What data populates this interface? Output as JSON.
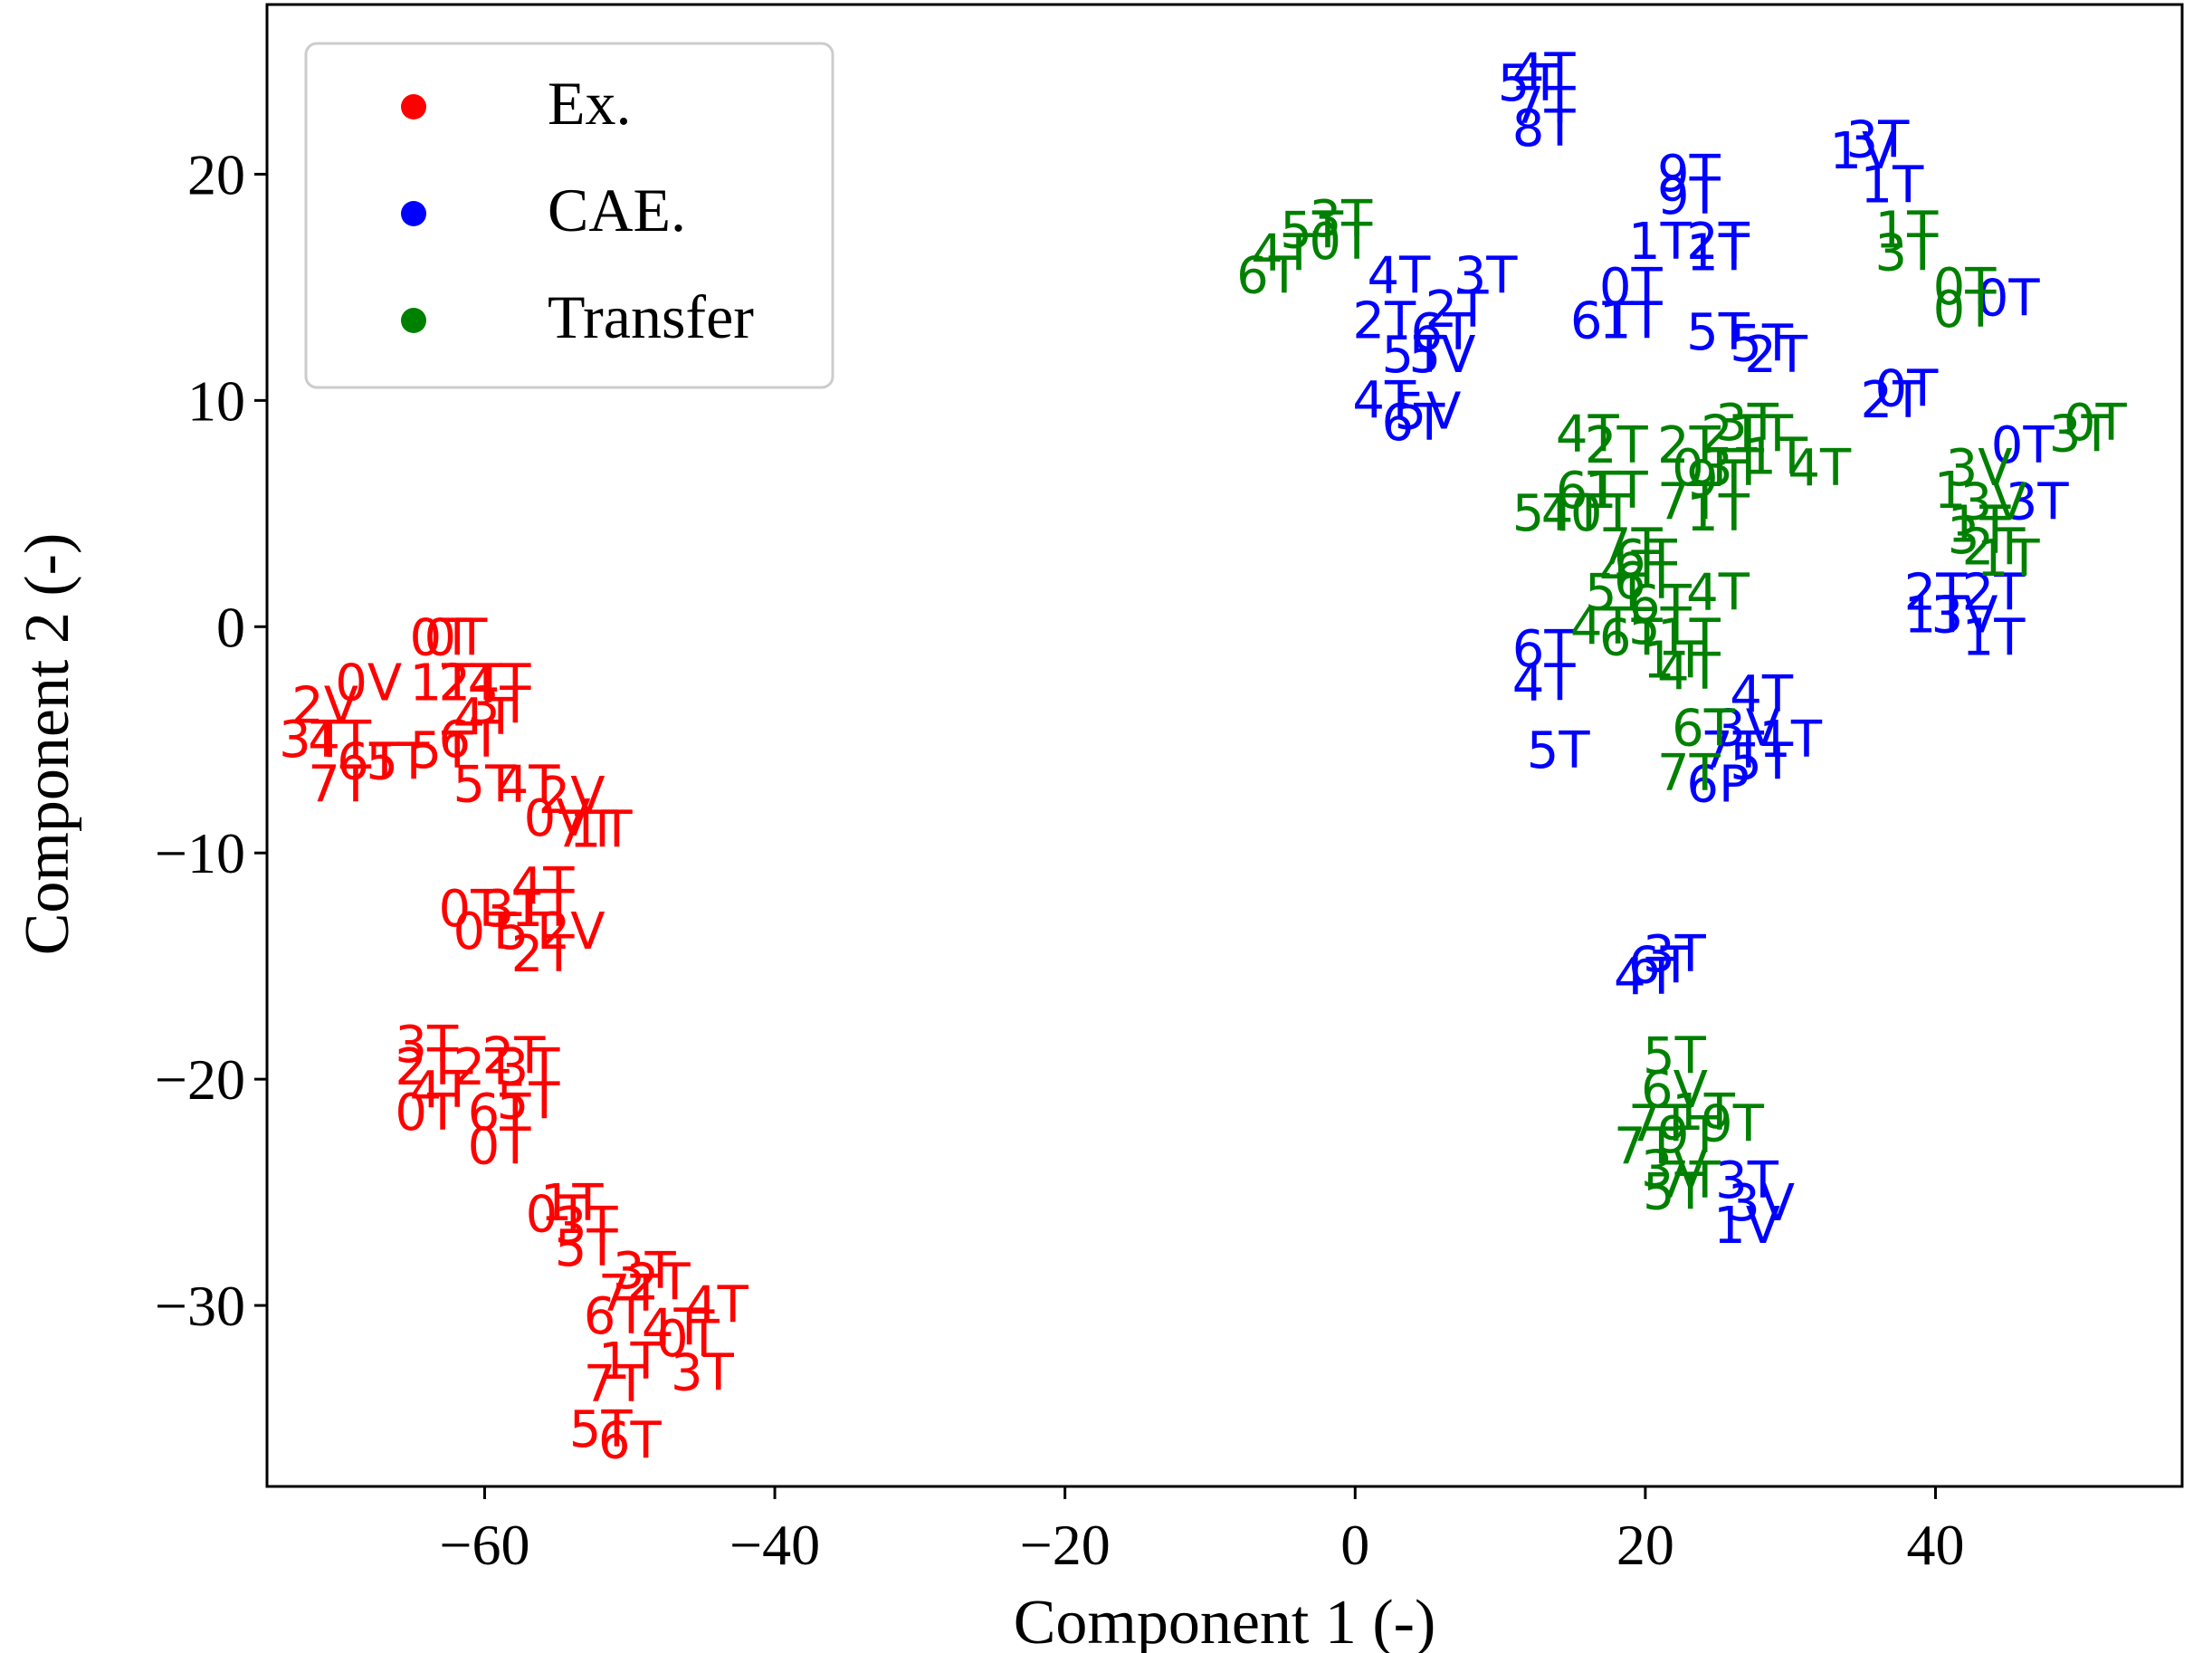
{
  "chart_data": {
    "type": "scatter",
    "title": "",
    "xlabel": "Component 1 (-)",
    "ylabel": "Component 2 (-)",
    "xlim": [
      -75,
      57
    ],
    "ylim": [
      -38,
      27.5
    ],
    "xticks": [
      -60,
      -40,
      -20,
      0,
      20,
      40
    ],
    "yticks": [
      20,
      10,
      0,
      -10,
      -20,
      -30
    ],
    "xtick_labels": [
      "−60",
      "−40",
      "−20",
      "0",
      "20",
      "40"
    ],
    "ytick_labels": [
      "20",
      "10",
      "0",
      "−10",
      "−20",
      "−30"
    ],
    "grid": false,
    "legend_position": "top-left",
    "series": [
      {
        "name": "Ex.",
        "color": "#ff0000",
        "points": [
          {
            "x": -63,
            "y": -0.5,
            "label": "0T"
          },
          {
            "x": -62,
            "y": -0.5,
            "label": "0T"
          },
          {
            "x": -68,
            "y": -2.5,
            "label": "0V"
          },
          {
            "x": -63,
            "y": -2.5,
            "label": "1T"
          },
          {
            "x": -61,
            "y": -2.5,
            "label": "2T"
          },
          {
            "x": -59,
            "y": -2.5,
            "label": "4T"
          },
          {
            "x": -71,
            "y": -3.5,
            "label": "2V"
          },
          {
            "x": -59,
            "y": -3.5,
            "label": "3T"
          },
          {
            "x": -60,
            "y": -4.0,
            "label": "4T"
          },
          {
            "x": -72,
            "y": -5.0,
            "label": "3T"
          },
          {
            "x": -70,
            "y": -5.0,
            "label": "4T"
          },
          {
            "x": -61,
            "y": -5.0,
            "label": "6T"
          },
          {
            "x": -63,
            "y": -5.5,
            "label": "5T"
          },
          {
            "x": -68,
            "y": -6.0,
            "label": "6T"
          },
          {
            "x": -66,
            "y": -6.0,
            "label": "5T"
          },
          {
            "x": -70,
            "y": -7.0,
            "label": "7T"
          },
          {
            "x": -60,
            "y": -7.0,
            "label": "5T"
          },
          {
            "x": -57,
            "y": -7.0,
            "label": "4T"
          },
          {
            "x": -54,
            "y": -7.5,
            "label": "2V"
          },
          {
            "x": -55,
            "y": -8.5,
            "label": "0V"
          },
          {
            "x": -53,
            "y": -9.0,
            "label": "7T"
          },
          {
            "x": -52,
            "y": -9.0,
            "label": "1T"
          },
          {
            "x": -56,
            "y": -11.5,
            "label": "4T"
          },
          {
            "x": -61,
            "y": -12.5,
            "label": "0T"
          },
          {
            "x": -58,
            "y": -12.5,
            "label": "3T"
          },
          {
            "x": -56,
            "y": -12.5,
            "label": "1T"
          },
          {
            "x": -60,
            "y": -13.5,
            "label": "0T"
          },
          {
            "x": -57,
            "y": -13.5,
            "label": "5T"
          },
          {
            "x": -54,
            "y": -13.5,
            "label": "2V"
          },
          {
            "x": -56,
            "y": -14.5,
            "label": "2T"
          },
          {
            "x": -64,
            "y": -18.5,
            "label": "3T"
          },
          {
            "x": -58,
            "y": -19.0,
            "label": "2T"
          },
          {
            "x": -64,
            "y": -19.5,
            "label": "2T"
          },
          {
            "x": -60,
            "y": -19.5,
            "label": "2T"
          },
          {
            "x": -57,
            "y": -19.5,
            "label": "3T"
          },
          {
            "x": -63,
            "y": -20.5,
            "label": "4T"
          },
          {
            "x": -64,
            "y": -21.5,
            "label": "0T"
          },
          {
            "x": -59,
            "y": -21.5,
            "label": "6T"
          },
          {
            "x": -57,
            "y": -21.0,
            "label": "5T"
          },
          {
            "x": -59,
            "y": -23.0,
            "label": "0T"
          },
          {
            "x": -54,
            "y": -25.5,
            "label": "1T"
          },
          {
            "x": -55,
            "y": -26.0,
            "label": "0T"
          },
          {
            "x": -53,
            "y": -26.5,
            "label": "3T"
          },
          {
            "x": -53,
            "y": -27.5,
            "label": "5T"
          },
          {
            "x": -49,
            "y": -28.5,
            "label": "3T"
          },
          {
            "x": -48,
            "y": -29.0,
            "label": "2T"
          },
          {
            "x": -50,
            "y": -29.5,
            "label": "7T"
          },
          {
            "x": -44,
            "y": -30.0,
            "label": "4T"
          },
          {
            "x": -51,
            "y": -30.5,
            "label": "6T"
          },
          {
            "x": -47,
            "y": -31.0,
            "label": "4T"
          },
          {
            "x": -46,
            "y": -31.5,
            "label": "0T"
          },
          {
            "x": -50,
            "y": -32.5,
            "label": "1T"
          },
          {
            "x": -45,
            "y": -33.0,
            "label": "3T"
          },
          {
            "x": -51,
            "y": -33.5,
            "label": "7T"
          },
          {
            "x": -52,
            "y": -35.5,
            "label": "5T"
          },
          {
            "x": -50,
            "y": -36.0,
            "label": "6T"
          }
        ]
      },
      {
        "name": "CAE.",
        "color": "#0000ff",
        "points": [
          {
            "x": 13,
            "y": 24.5,
            "label": "4T"
          },
          {
            "x": 12,
            "y": 24.0,
            "label": "5T"
          },
          {
            "x": 13,
            "y": 23.0,
            "label": "7T"
          },
          {
            "x": 13,
            "y": 22.0,
            "label": "8T"
          },
          {
            "x": 36,
            "y": 21.5,
            "label": "3T"
          },
          {
            "x": 35,
            "y": 21.0,
            "label": "1V"
          },
          {
            "x": 37,
            "y": 19.5,
            "label": "1T"
          },
          {
            "x": 23,
            "y": 20.0,
            "label": "9T"
          },
          {
            "x": 23,
            "y": 19.0,
            "label": "9T"
          },
          {
            "x": 21,
            "y": 17.0,
            "label": "1T"
          },
          {
            "x": 25,
            "y": 17.0,
            "label": "2T"
          },
          {
            "x": 25,
            "y": 16.5,
            "label": "1T"
          },
          {
            "x": 3,
            "y": 15.5,
            "label": "4T"
          },
          {
            "x": 9,
            "y": 15.5,
            "label": "3T"
          },
          {
            "x": 19,
            "y": 15.0,
            "label": "0T"
          },
          {
            "x": 7,
            "y": 14.0,
            "label": "2T"
          },
          {
            "x": 2,
            "y": 13.5,
            "label": "2T"
          },
          {
            "x": 17,
            "y": 13.5,
            "label": "6T"
          },
          {
            "x": 19,
            "y": 13.5,
            "label": "1T"
          },
          {
            "x": 6,
            "y": 13.0,
            "label": "6T"
          },
          {
            "x": 4,
            "y": 12.0,
            "label": "5T"
          },
          {
            "x": 6,
            "y": 12.0,
            "label": "5V"
          },
          {
            "x": 25,
            "y": 13.0,
            "label": "5T"
          },
          {
            "x": 28,
            "y": 12.5,
            "label": "5T"
          },
          {
            "x": 29,
            "y": 12.0,
            "label": "2T"
          },
          {
            "x": 45,
            "y": 14.5,
            "label": "0T"
          },
          {
            "x": 38,
            "y": 10.5,
            "label": "0T"
          },
          {
            "x": 37,
            "y": 10.0,
            "label": "2T"
          },
          {
            "x": 2,
            "y": 10.0,
            "label": "4T"
          },
          {
            "x": 4,
            "y": 9.0,
            "label": "6T"
          },
          {
            "x": 5,
            "y": 9.5,
            "label": "5V"
          },
          {
            "x": 46,
            "y": 8.0,
            "label": "0T"
          },
          {
            "x": 47,
            "y": 5.5,
            "label": "3T"
          },
          {
            "x": 40,
            "y": 1.5,
            "label": "2T"
          },
          {
            "x": 44,
            "y": 1.5,
            "label": "2T"
          },
          {
            "x": 40,
            "y": 0.5,
            "label": "1T"
          },
          {
            "x": 42,
            "y": 0.5,
            "label": "3V"
          },
          {
            "x": 44,
            "y": -0.5,
            "label": "1T"
          },
          {
            "x": 13,
            "y": -1.0,
            "label": "6T"
          },
          {
            "x": 13,
            "y": -2.5,
            "label": "4T"
          },
          {
            "x": 28,
            "y": -3.0,
            "label": "4T"
          },
          {
            "x": 27,
            "y": -4.5,
            "label": "3V"
          },
          {
            "x": 30,
            "y": -5.0,
            "label": "1T"
          },
          {
            "x": 14,
            "y": -5.5,
            "label": "5T"
          },
          {
            "x": 26,
            "y": -5.5,
            "label": "7T"
          },
          {
            "x": 28,
            "y": -6.0,
            "label": "5T"
          },
          {
            "x": 25,
            "y": -7.0,
            "label": "6P"
          },
          {
            "x": 22,
            "y": -14.5,
            "label": "3T"
          },
          {
            "x": 21,
            "y": -15.0,
            "label": "6T"
          },
          {
            "x": 20,
            "y": -15.5,
            "label": "4T"
          },
          {
            "x": 27,
            "y": -24.5,
            "label": "3T"
          },
          {
            "x": 28,
            "y": -25.5,
            "label": "3V"
          },
          {
            "x": 27,
            "y": -26.5,
            "label": "1V"
          }
        ]
      },
      {
        "name": "Transfer",
        "color": "#008000",
        "points": [
          {
            "x": -1,
            "y": 18.0,
            "label": "3T"
          },
          {
            "x": -3,
            "y": 17.5,
            "label": "5T"
          },
          {
            "x": -1,
            "y": 17.0,
            "label": "0T"
          },
          {
            "x": -5,
            "y": 16.5,
            "label": "4T"
          },
          {
            "x": -6,
            "y": 15.5,
            "label": "6T"
          },
          {
            "x": 38,
            "y": 17.5,
            "label": "1T"
          },
          {
            "x": 38,
            "y": 16.5,
            "label": "3T"
          },
          {
            "x": 42,
            "y": 15.0,
            "label": "0T"
          },
          {
            "x": 42,
            "y": 14.0,
            "label": "0T"
          },
          {
            "x": 51,
            "y": 9.0,
            "label": "0T"
          },
          {
            "x": 50,
            "y": 8.5,
            "label": "3T"
          },
          {
            "x": 16,
            "y": 8.5,
            "label": "4T"
          },
          {
            "x": 18,
            "y": 8.0,
            "label": "2T"
          },
          {
            "x": 23,
            "y": 8.0,
            "label": "2T"
          },
          {
            "x": 27,
            "y": 9.0,
            "label": "3T"
          },
          {
            "x": 26,
            "y": 8.5,
            "label": "2T"
          },
          {
            "x": 28,
            "y": 8.5,
            "label": "1T"
          },
          {
            "x": 29,
            "y": 7.5,
            "label": "1T"
          },
          {
            "x": 32,
            "y": 7.0,
            "label": "4T"
          },
          {
            "x": 24,
            "y": 7.0,
            "label": "0T"
          },
          {
            "x": 26,
            "y": 7.0,
            "label": "3T"
          },
          {
            "x": 25,
            "y": 6.5,
            "label": "9T"
          },
          {
            "x": 43,
            "y": 7.0,
            "label": "3V"
          },
          {
            "x": 41,
            "y": 6.0,
            "label": "1"
          },
          {
            "x": 44,
            "y": 5.5,
            "label": "3V"
          },
          {
            "x": 43,
            "y": 4.5,
            "label": "1T"
          },
          {
            "x": 43,
            "y": 4.0,
            "label": "3T"
          },
          {
            "x": 44,
            "y": 3.5,
            "label": "2T"
          },
          {
            "x": 45,
            "y": 3.0,
            "label": "1T"
          },
          {
            "x": 16,
            "y": 6.0,
            "label": "6T"
          },
          {
            "x": 18,
            "y": 6.0,
            "label": "1T"
          },
          {
            "x": 13,
            "y": 5.0,
            "label": "5T"
          },
          {
            "x": 15,
            "y": 5.0,
            "label": "4T"
          },
          {
            "x": 17,
            "y": 5.0,
            "label": "0T"
          },
          {
            "x": 23,
            "y": 5.5,
            "label": "7T"
          },
          {
            "x": 25,
            "y": 5.0,
            "label": "1T"
          },
          {
            "x": 19,
            "y": 3.5,
            "label": "7T"
          },
          {
            "x": 20,
            "y": 3.0,
            "label": "6T"
          },
          {
            "x": 19,
            "y": 2.5,
            "label": "4T"
          },
          {
            "x": 20,
            "y": 2.0,
            "label": "6T"
          },
          {
            "x": 18,
            "y": 1.5,
            "label": "5T"
          },
          {
            "x": 21,
            "y": 1.0,
            "label": "6T"
          },
          {
            "x": 25,
            "y": 1.5,
            "label": "4T"
          },
          {
            "x": 17,
            "y": 0.0,
            "label": "4T"
          },
          {
            "x": 19,
            "y": -0.5,
            "label": "6T"
          },
          {
            "x": 21,
            "y": 0.0,
            "label": "5T"
          },
          {
            "x": 23,
            "y": -0.5,
            "label": "1T"
          },
          {
            "x": 22,
            "y": -1.5,
            "label": "1T"
          },
          {
            "x": 23,
            "y": -2.0,
            "label": "4T"
          },
          {
            "x": 24,
            "y": -4.5,
            "label": "6T"
          },
          {
            "x": 23,
            "y": -6.5,
            "label": "7T"
          },
          {
            "x": 22,
            "y": -19.0,
            "label": "5T"
          },
          {
            "x": 22,
            "y": -20.5,
            "label": "6V"
          },
          {
            "x": 24,
            "y": -21.5,
            "label": "1T"
          },
          {
            "x": 21,
            "y": -22.0,
            "label": "7T"
          },
          {
            "x": 23,
            "y": -22.5,
            "label": "9T"
          },
          {
            "x": 26,
            "y": -22.0,
            "label": "9T"
          },
          {
            "x": 20,
            "y": -23.0,
            "label": "7T"
          },
          {
            "x": 22,
            "y": -24.0,
            "label": "3V"
          },
          {
            "x": 23,
            "y": -24.5,
            "label": "7T"
          },
          {
            "x": 22,
            "y": -25.0,
            "label": "5T"
          }
        ]
      }
    ]
  }
}
